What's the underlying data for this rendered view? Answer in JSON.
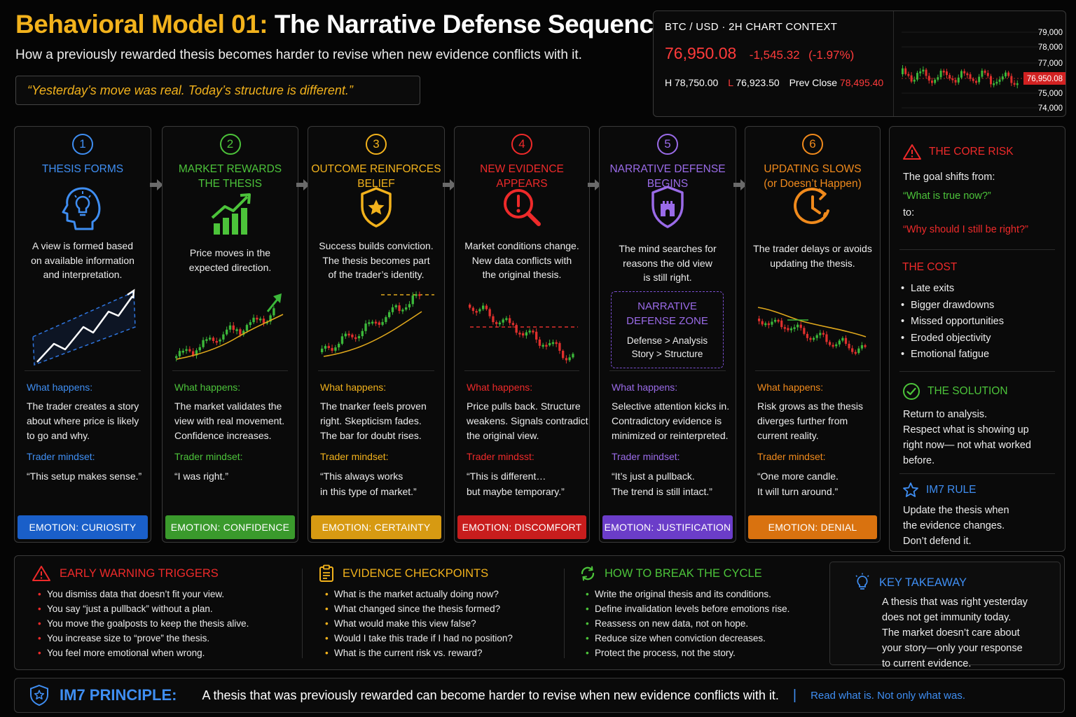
{
  "header": {
    "title_prefix": "Behavioral Model 01:",
    "title_main": "The Narrative Defense Sequence",
    "subtitle": "How a previously rewarded thesis becomes harder to revise when new evidence conflicts with it.",
    "quote": "“Yesterday’s move was real. Today’s structure is different.”"
  },
  "ticker": {
    "title": "BTC / USD · 2H CHART CONTEXT",
    "price": "76,950.08",
    "change": "-1,545.32",
    "change_pct": "(-1.97%)",
    "high_label": "H",
    "high": "78,750.00",
    "low_label": "L",
    "low": "76,923.50",
    "prev_label": "Prev Close",
    "prev": "78,495.40",
    "axis": [
      "79,000",
      "78,000",
      "77,000",
      "76,950.08",
      "75,000",
      "74,000"
    ]
  },
  "colors": {
    "blue": "#3f8ef2",
    "green": "#4cc33a",
    "yellow": "#f2b21c",
    "red": "#ee2a2a",
    "purple": "#9a6be8",
    "orange": "#f08a1c"
  },
  "steps": [
    {
      "num": "1",
      "title": [
        "THESIS FORMS",
        ""
      ],
      "icon": "head-lightbulb-icon",
      "desc": [
        "A view is formed based",
        "on available information",
        "and interpretation."
      ],
      "what_label": "What happens:",
      "what": [
        "The trader creates a story",
        "about where price is likely",
        "to go and why."
      ],
      "mind_label": "Trader mindset:",
      "mind": [
        "“This setup makes sense.”",
        ""
      ],
      "emotion": "EMOTION: CURIOSITY"
    },
    {
      "num": "2",
      "title": [
        "MARKET REWARDS",
        "THE THESIS"
      ],
      "icon": "growth-chart-icon",
      "desc": [
        "Price moves in the",
        "expected direction.",
        ""
      ],
      "what_label": "What happens:",
      "what": [
        "The market validates the",
        "view with real movement.",
        "Confidence increases."
      ],
      "mind_label": "Trader mindset:",
      "mind": [
        "“I was right.”",
        ""
      ],
      "emotion": "EMOTION: CONFIDENCE"
    },
    {
      "num": "3",
      "title": [
        "OUTCOME REINFORCES",
        "BELIEF"
      ],
      "icon": "shield-star-icon",
      "desc": [
        "Success builds conviction.",
        "The thesis becomes part",
        "of the trader’s identity."
      ],
      "what_label": "What happens:",
      "what": [
        "The tnarker feels proven",
        "right. Skepticism fades.",
        "The bar for doubt rises."
      ],
      "mind_label": "Trader mindset:",
      "mind": [
        "“This always works",
        "in this type of market.”"
      ],
      "emotion": "EMOTION: CERTAINTY"
    },
    {
      "num": "4",
      "title": [
        "NEW EVIDENCE",
        "APPEARS"
      ],
      "icon": "magnifier-alert-icon",
      "desc": [
        "Market conditions change.",
        "New data conflicts with",
        "the original thesis."
      ],
      "what_label": "What happens:",
      "what": [
        "Price pulls back. Structure",
        "weakens. Signals contradict",
        "the original view."
      ],
      "mind_label": "Trader mindsst:",
      "mind": [
        "“This is different…",
        "but maybe temporary.”"
      ],
      "emotion": "EMOTION: DISCOMFORT"
    },
    {
      "num": "5",
      "title": [
        "NARRATIVE DEFENSE",
        "BEGINS"
      ],
      "icon": "shield-castle-icon",
      "desc": [
        "The mind searches for",
        "reasons the old view",
        "is still right."
      ],
      "what_label": "What happens:",
      "what": [
        "Selective attention kicks in.",
        "Contradictory evidence is",
        "minimized or reinterpreted."
      ],
      "mind_label": "Trader mindset:",
      "mind": [
        "“It’s just a pullback.",
        "The trend is still intact.”"
      ],
      "emotion": "EMOTION: JUSTIFICATION",
      "zone": {
        "title": [
          "NARRATIVE",
          "DEFENSE ZONE"
        ],
        "lines": [
          "Defense > Analysis",
          "Story > Structure"
        ]
      }
    },
    {
      "num": "6",
      "title": [
        "UPDATING SLOWS",
        "(or Doesn’t Happen)"
      ],
      "icon": "clock-icon",
      "desc": [
        "The trader delays or avoids",
        "updating the thesis.",
        ""
      ],
      "what_label": "What happens:",
      "what": [
        "Risk grows as the thesis",
        "diverges further from",
        "current reality."
      ],
      "mind_label": "Trader mindset:",
      "mind": [
        "“One more candle.",
        "It will turn around.”"
      ],
      "emotion": "EMOTION: DENIAL"
    }
  ],
  "side": {
    "core_risk_title": "THE CORE RISK",
    "shift_from": "The goal shifts from:",
    "q_true": "“What is true now?”",
    "to": "to:",
    "q_right": "“Why should I still be right?”",
    "cost_title": "THE COST",
    "cost_items": [
      "Late exits",
      "Bigger drawdowns",
      "Missed opportunities",
      "Eroded objectivity",
      "Emotional fatigue"
    ],
    "solution_title": "THE SOLUTION",
    "solution_lines": [
      "Return to analysis.",
      "Respect what is showing up",
      "right now— not what worked",
      "before."
    ],
    "rule_title": "IM7 RULE",
    "rule_lines": [
      "Update the thesis when",
      "the evidence changes.",
      "Don’t defend it."
    ]
  },
  "bottom": {
    "triggers_title": "EARLY WARNING TRIGGERS",
    "triggers": [
      "You dismiss data that doesn’t fit your view.",
      "You say “just a pullback” without a plan.",
      "You move the goalposts to keep the thesis alive.",
      "You increase size to “prove” the thesis.",
      "You feel more emotional when wrong."
    ],
    "checkpoints_title": "EVIDENCE CHECKPOINTS",
    "checkpoints": [
      "What is the market actually doing now?",
      "What changed since the thesis formed?",
      "What would make this view false?",
      "Would I take this trade if I had no position?",
      "What is the current risk vs. reward?"
    ],
    "break_title": "HOW TO BREAK THE CYCLE",
    "break_items": [
      "Write the original thesis and its conditions.",
      "Define invalidation levels before emotions rise.",
      "Reassess on new data, not on hope.",
      "Reduce size when conviction decreases.",
      "Protect the process, not the story."
    ],
    "takeaway_title": "KEY TAKEAWAY",
    "takeaway_lines": [
      "A thesis that was right yesterday",
      "does not get immunity today.",
      "The market doesn’t care about",
      "your story—only your response",
      "to current evidence."
    ]
  },
  "principle": {
    "label": "IM7 PRINCIPLE:",
    "text": "A thesis that was previously rewarded can become harder to revise when new evidence conflicts with it.",
    "bar": "|",
    "tag": "Read what is. Not only what was."
  }
}
